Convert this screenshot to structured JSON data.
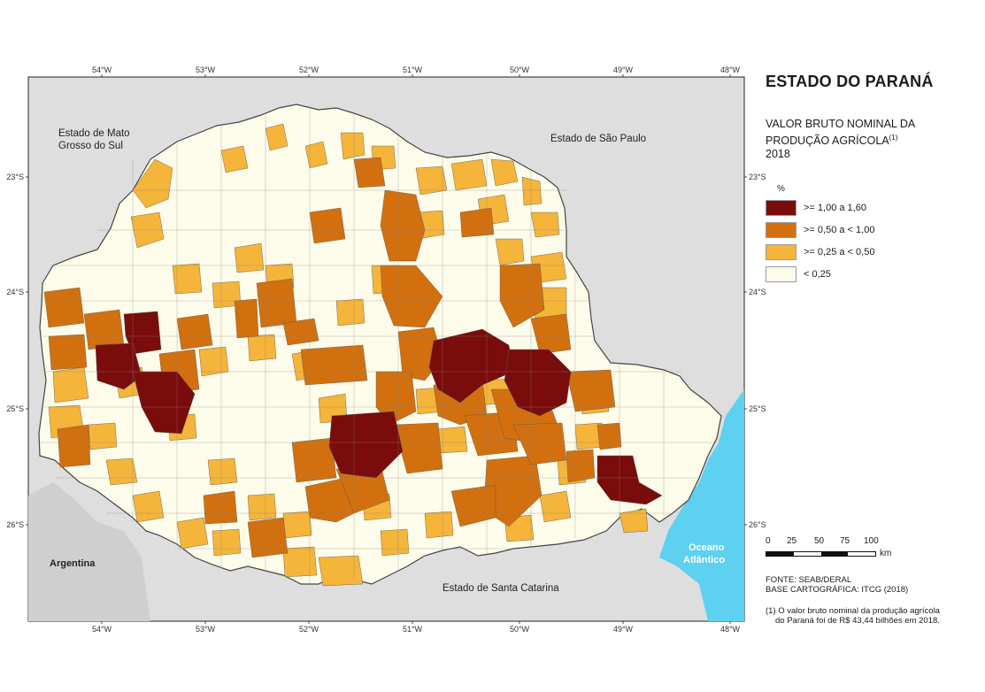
{
  "title": "ESTADO DO PARANÁ",
  "subtitle": {
    "line1": "VALOR BRUTO NOMINAL DA",
    "line2": "PRODUÇÃO AGRÍCOLA",
    "note_marker": "(1)",
    "line3": "2018"
  },
  "legend": {
    "unit": "%",
    "items": [
      {
        "label": ">= 1,00 a 1,60",
        "color": "#7b0c0c"
      },
      {
        "label": ">= 0,50 a < 1,00",
        "color": "#d2700f"
      },
      {
        "label": ">= 0,25 a < 0,50",
        "color": "#f5b43a"
      },
      {
        "label": "< 0,25",
        "color": "#fdfcea"
      }
    ]
  },
  "scale": {
    "ticks": [
      "0",
      "25",
      "50",
      "75",
      "100"
    ],
    "unit": "km"
  },
  "longitude_labels": [
    "54°W",
    "53°W",
    "52°W",
    "51°W",
    "50°W",
    "49°W",
    "48°W"
  ],
  "latitude_labels": [
    "23°S",
    "24°S",
    "25°S",
    "26°S"
  ],
  "regions": {
    "ms": [
      "Estado de Mato",
      "Grosso do Sul"
    ],
    "sp": "Estado de São Paulo",
    "sc": "Estado de Santa Catarina",
    "argentina": "Argentina",
    "ocean": [
      "Oceano",
      "Atlântico"
    ]
  },
  "source": {
    "line1": "FONTE: SEAB/DERAL",
    "line2": "BASE CARTOGRÁFICA: ITCG (2018)"
  },
  "footnote": {
    "line1": "(1) O valor bruto nominal da produção agrícola",
    "line2": "do Paraná foi de R$ 43,44 bilhões em 2018."
  },
  "colors": {
    "neighbor": "#dedede",
    "ocean": "#5ed0f0",
    "border": "#444444"
  }
}
